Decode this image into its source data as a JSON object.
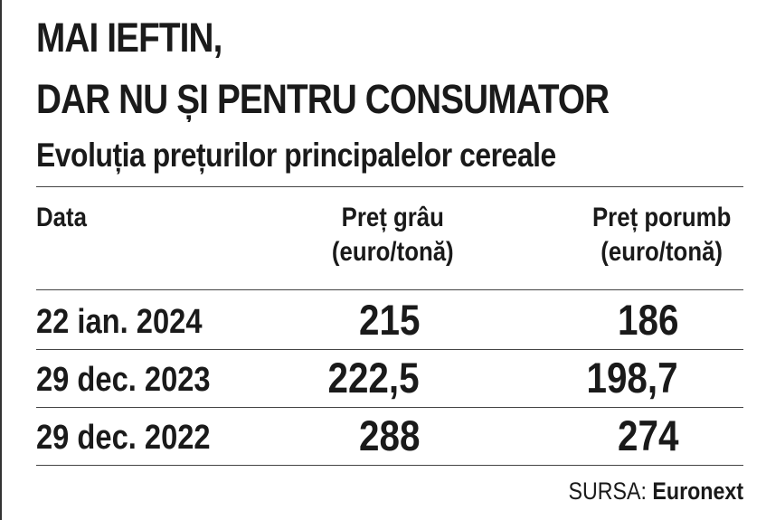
{
  "chart_data": {
    "type": "table",
    "title": "MAI IEFTIN,",
    "title_line2": "DAR NU ȘI PENTRU CONSUMATOR",
    "subtitle": "Evoluția prețurilor principalelor cereale",
    "columns": [
      {
        "label": "Data",
        "unit": ""
      },
      {
        "label": "Preț grâu",
        "unit": "(euro/tonă)"
      },
      {
        "label": "Preț porumb",
        "unit": "(euro/tonă)"
      }
    ],
    "rows": [
      {
        "date": "22 ian. 2024",
        "wheat": "215",
        "corn": "186"
      },
      {
        "date": "29 dec. 2023",
        "wheat": "222,5",
        "corn": "198,7"
      },
      {
        "date": "29 dec. 2022",
        "wheat": "288",
        "corn": "274"
      }
    ],
    "source_label": "SURSA:",
    "source_name": "Euronext"
  },
  "colors": {
    "text": "#1a1a1a",
    "rule": "#444444",
    "background": "#ffffff"
  }
}
